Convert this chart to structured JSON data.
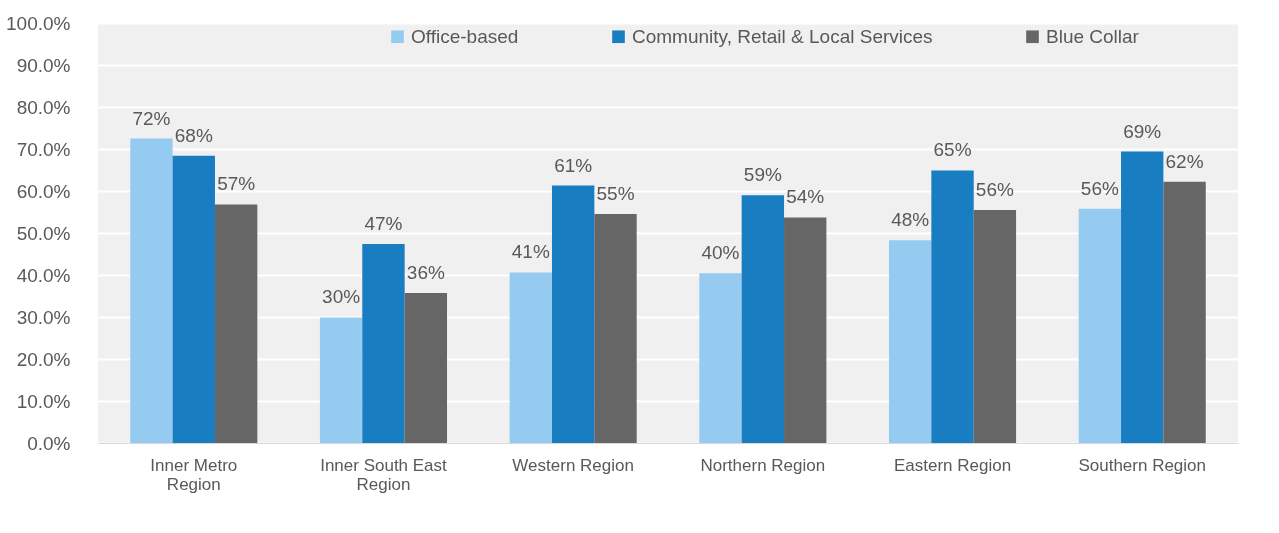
{
  "chart_data": {
    "type": "bar",
    "categories": [
      "Inner Metro Region",
      "Inner South East Region",
      "Western Region",
      "Northern Region",
      "Eastern Region",
      "Southern Region"
    ],
    "series": [
      {
        "name": "Office-based",
        "color": "#95cbf0",
        "values": [
          72.5,
          29.9,
          40.6,
          40.4,
          48.3,
          55.8
        ],
        "value_labels": [
          "72%",
          "30%",
          "41%",
          "40%",
          "48%",
          "56%"
        ]
      },
      {
        "name": "Community, Retail & Local Services",
        "color": "#197dc1",
        "values": [
          68.4,
          47.4,
          61.3,
          59.0,
          64.9,
          69.4
        ],
        "value_labels": [
          "68%",
          "47%",
          "61%",
          "59%",
          "65%",
          "69%"
        ]
      },
      {
        "name": "Blue Collar",
        "color": "#666666",
        "values": [
          56.8,
          35.7,
          54.5,
          53.7,
          55.5,
          62.2
        ],
        "value_labels": [
          "57%",
          "36%",
          "55%",
          "54%",
          "56%",
          "62%"
        ]
      }
    ],
    "ylim": [
      0,
      100
    ],
    "yticks": [
      {
        "value": 0,
        "label": "0.0%"
      },
      {
        "value": 10,
        "label": "10.0%"
      },
      {
        "value": 20,
        "label": "20.0%"
      },
      {
        "value": 30,
        "label": "30.0%"
      },
      {
        "value": 40,
        "label": "40.0%"
      },
      {
        "value": 50,
        "label": "50.0%"
      },
      {
        "value": 60,
        "label": "60.0%"
      },
      {
        "value": 70,
        "label": "70.0%"
      },
      {
        "value": 80,
        "label": "80.0%"
      },
      {
        "value": 90,
        "label": "90.0%"
      },
      {
        "value": 100,
        "label": "100.0%"
      }
    ],
    "grid": "y",
    "legend": "top"
  }
}
